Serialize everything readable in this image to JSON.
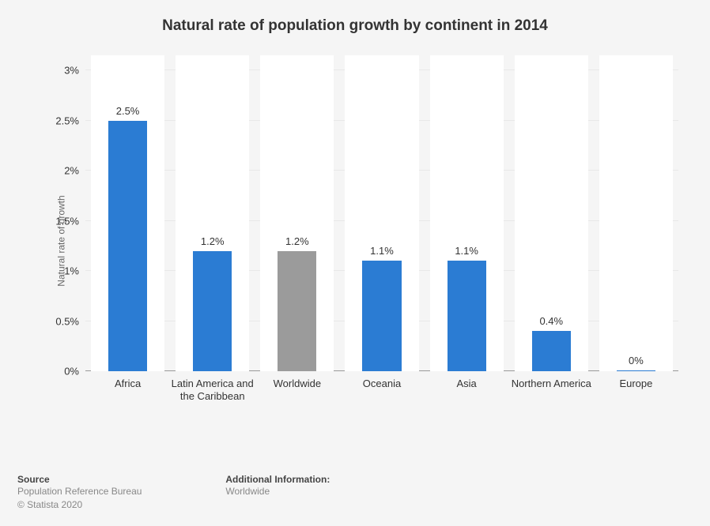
{
  "chart": {
    "type": "bar",
    "title": "Natural rate of population growth by continent in 2014",
    "y_axis_title": "Natural rate of growth",
    "ylim_max_pct": 3.151,
    "y_ticks": [
      {
        "value": 0,
        "label": "0%"
      },
      {
        "value": 0.5,
        "label": "0.5%"
      },
      {
        "value": 1,
        "label": "1%"
      },
      {
        "value": 1.5,
        "label": "1.5%"
      },
      {
        "value": 2,
        "label": "2%"
      },
      {
        "value": 2.5,
        "label": "2.5%"
      },
      {
        "value": 3,
        "label": "3%"
      }
    ],
    "band_background": "#ffffff",
    "plot_background": "#f5f5f5",
    "grid_color": "rgba(0,0,0,0.05)",
    "bar_width_ratio": 0.46,
    "band_width_ratio": 0.87,
    "label_fontsize": 13,
    "title_fontsize": 19,
    "series": [
      {
        "category": "Africa",
        "value": 2.5,
        "value_label": "2.5%",
        "color": "#2b7cd3"
      },
      {
        "category": "Latin America and the Caribbean",
        "value": 1.2,
        "value_label": "1.2%",
        "color": "#2b7cd3"
      },
      {
        "category": "Worldwide",
        "value": 1.2,
        "value_label": "1.2%",
        "color": "#9b9b9b"
      },
      {
        "category": "Oceania",
        "value": 1.1,
        "value_label": "1.1%",
        "color": "#2b7cd3"
      },
      {
        "category": "Asia",
        "value": 1.1,
        "value_label": "1.1%",
        "color": "#2b7cd3"
      },
      {
        "category": "Northern America",
        "value": 0.4,
        "value_label": "0.4%",
        "color": "#2b7cd3"
      },
      {
        "category": "Europe",
        "value": 0.0,
        "value_label": "0%",
        "color": "#2b7cd3"
      }
    ]
  },
  "footer": {
    "source_heading": "Source",
    "source_line1": "Population Reference Bureau",
    "source_line2": "© Statista 2020",
    "additional_heading": "Additional Information:",
    "additional_value": "Worldwide"
  }
}
